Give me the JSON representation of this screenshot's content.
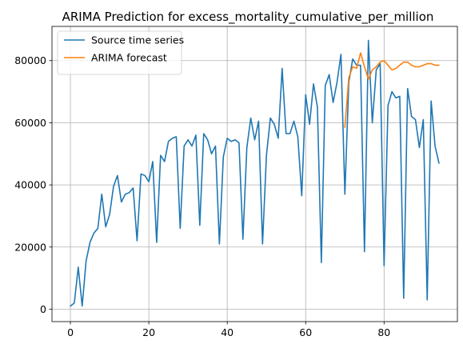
{
  "chart_data": {
    "type": "line",
    "title": "ARIMA Prediction for excess_mortality_cumulative_per_million",
    "xlabel": "",
    "ylabel": "",
    "xlim": [
      -4.7,
      98.7
    ],
    "ylim": [
      -4000,
      91000
    ],
    "xticks": [
      0,
      20,
      40,
      60,
      80
    ],
    "yticks": [
      0,
      20000,
      40000,
      60000,
      80000
    ],
    "grid": true,
    "legend_position": "top-left",
    "series": [
      {
        "name": "Source time series",
        "color": "#1f77b4",
        "x": [
          0,
          1,
          2,
          3,
          4,
          5,
          6,
          7,
          8,
          9,
          10,
          11,
          12,
          13,
          14,
          15,
          16,
          17,
          18,
          19,
          20,
          21,
          22,
          23,
          24,
          25,
          26,
          27,
          28,
          29,
          30,
          31,
          32,
          33,
          34,
          35,
          36,
          37,
          38,
          39,
          40,
          41,
          42,
          43,
          44,
          45,
          46,
          47,
          48,
          49,
          50,
          51,
          52,
          53,
          54,
          55,
          56,
          57,
          58,
          59,
          60,
          61,
          62,
          63,
          64,
          65,
          66,
          67,
          68,
          69,
          70,
          71,
          72,
          73,
          74,
          75,
          76,
          77,
          78,
          79,
          80,
          81,
          82,
          83,
          84,
          85,
          86,
          87,
          88,
          89,
          90,
          91,
          92,
          93,
          94
        ],
        "y": [
          1000,
          2000,
          13500,
          1000,
          15500,
          21500,
          24500,
          26000,
          37000,
          26500,
          30500,
          39500,
          43000,
          34500,
          37000,
          37500,
          39000,
          22000,
          43500,
          43000,
          41000,
          47500,
          21500,
          49500,
          47500,
          54000,
          55000,
          55500,
          26000,
          52500,
          54500,
          52500,
          56000,
          27000,
          56500,
          54500,
          50000,
          52500,
          21000,
          49000,
          55000,
          54000,
          54500,
          53500,
          22500,
          52000,
          61500,
          54500,
          60500,
          21000,
          49500,
          61500,
          59500,
          55000,
          77500,
          56500,
          56500,
          60500,
          55500,
          36500,
          69000,
          59500,
          72500,
          65000,
          15000,
          72000,
          75500,
          66500,
          73000,
          82000,
          37000,
          73000,
          80500,
          78500,
          78500,
          18500,
          86500,
          60000,
          77000,
          79000,
          14000,
          65500,
          70000,
          68000,
          68500,
          3500,
          71000,
          62000,
          61000,
          52000,
          61000,
          3000,
          67000,
          52500,
          47000
        ]
      },
      {
        "name": "ARIMA forecast",
        "color": "#ff7f0e",
        "x": [
          70,
          71,
          72,
          73,
          74,
          75,
          76,
          77,
          78,
          79,
          80,
          81,
          82,
          83,
          84,
          85,
          86,
          87,
          88,
          89,
          90,
          91,
          92,
          93,
          94
        ],
        "y": [
          58500,
          74500,
          78000,
          77500,
          82500,
          78000,
          74000,
          77000,
          78000,
          79500,
          80000,
          78500,
          77000,
          77500,
          78500,
          79500,
          79500,
          78500,
          78000,
          78000,
          78500,
          79000,
          79000,
          78500,
          78500
        ]
      }
    ]
  }
}
